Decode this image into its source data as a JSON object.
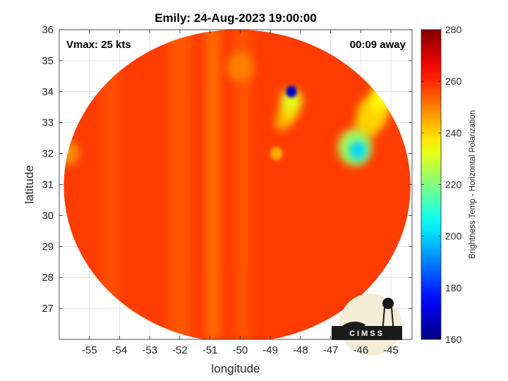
{
  "chart_data": {
    "type": "heatmap",
    "title": "Emily: 24-Aug-2023 19:00:00",
    "xlabel": "longitude",
    "ylabel": "latitude",
    "xlim": [
      -56.0,
      -44.3
    ],
    "ylim": [
      26.0,
      36.0
    ],
    "x_ticks": [
      -55,
      -54,
      -53,
      -52,
      -51,
      -50,
      -49,
      -48,
      -47,
      -46,
      -45
    ],
    "y_ticks": [
      27,
      28,
      29,
      30,
      31,
      32,
      33,
      34,
      35,
      36
    ],
    "grid": true,
    "colormap": "jet",
    "colorbar": {
      "label": "Brightness Temp - Horizontal Polarization",
      "range": [
        160,
        280
      ],
      "ticks": [
        160,
        180,
        200,
        220,
        240,
        260,
        280
      ]
    },
    "annotations": {
      "vmax": "Vmax: 25 kts",
      "time_offset": "00:09 away"
    },
    "swath": {
      "center": [
        -50.1,
        30.95
      ],
      "radius_lon": 5.75,
      "radius_lat": 5.05
    },
    "background_temp": 258,
    "features": [
      {
        "lon": -48.3,
        "lat": 34.0,
        "temp": 168,
        "size": 0.18
      },
      {
        "lon": -48.3,
        "lat": 33.7,
        "temp": 232,
        "size": 0.35
      },
      {
        "lon": -48.4,
        "lat": 33.3,
        "temp": 240,
        "size": 0.3
      },
      {
        "lon": -48.6,
        "lat": 33.0,
        "temp": 245,
        "size": 0.25
      },
      {
        "lon": -46.1,
        "lat": 32.1,
        "temp": 200,
        "size": 0.3
      },
      {
        "lon": -46.2,
        "lat": 32.2,
        "temp": 225,
        "size": 0.55
      },
      {
        "lon": -45.3,
        "lat": 33.8,
        "temp": 235,
        "size": 0.4
      },
      {
        "lon": -45.6,
        "lat": 33.3,
        "temp": 240,
        "size": 0.5
      },
      {
        "lon": -45.8,
        "lat": 32.9,
        "temp": 242,
        "size": 0.4
      },
      {
        "lon": -48.8,
        "lat": 32.0,
        "temp": 245,
        "size": 0.2
      },
      {
        "lon": -50.0,
        "lat": 34.8,
        "temp": 250,
        "size": 0.45
      },
      {
        "lon": -55.7,
        "lat": 32.0,
        "temp": 248,
        "size": 0.35
      }
    ],
    "bands": [
      {
        "lon": -52.0,
        "temp": 252,
        "width": 0.7
      },
      {
        "lon": -50.9,
        "temp": 247,
        "width": 0.45
      },
      {
        "lon": -49.9,
        "temp": 253,
        "width": 0.55
      },
      {
        "lon": -54.3,
        "temp": 254,
        "width": 0.6
      }
    ]
  },
  "logo": {
    "text": "CIMSS"
  }
}
